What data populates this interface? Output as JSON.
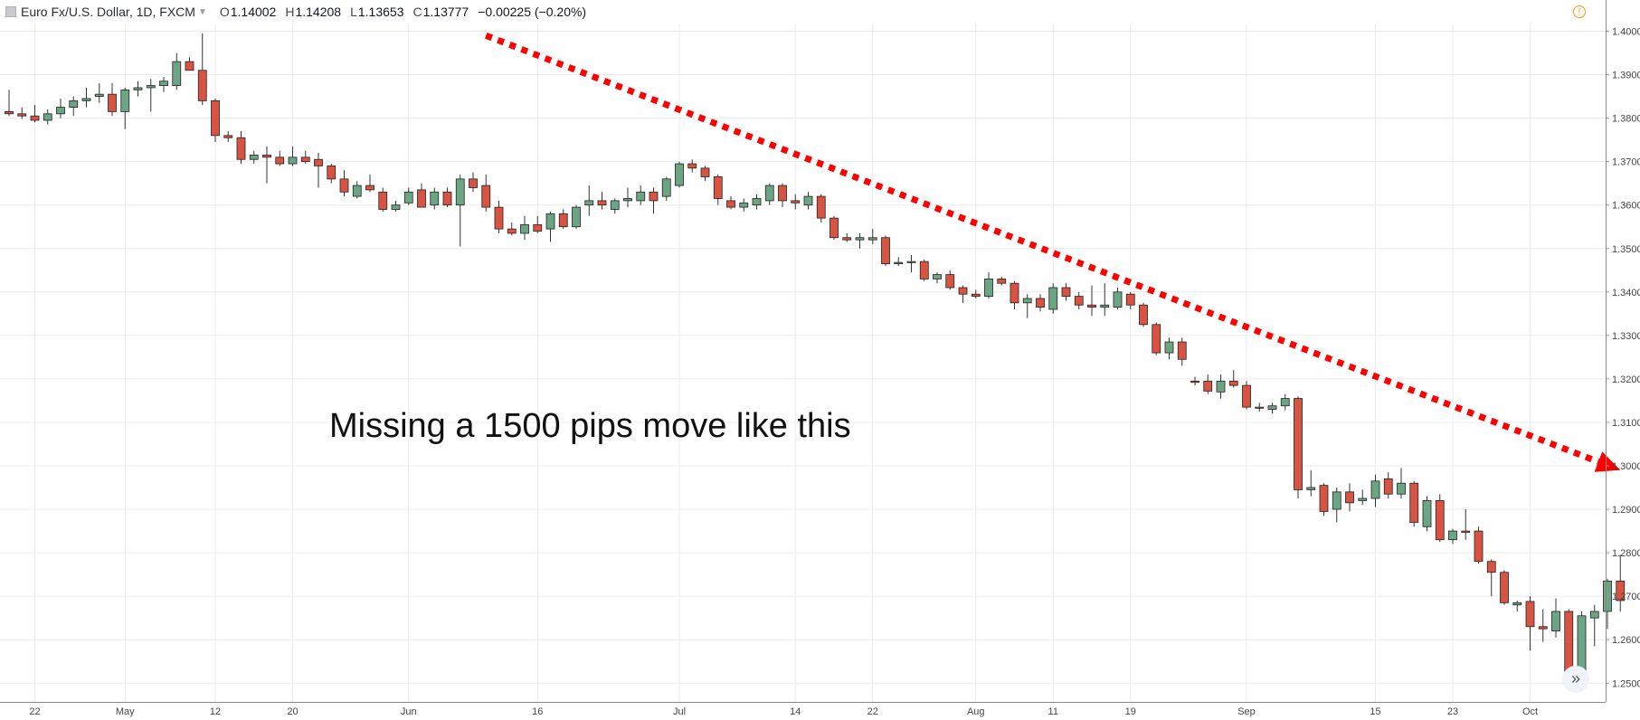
{
  "header": {
    "symbol": "Euro Fx/U.S. Dollar, 1D, FXCM",
    "open_key": "O",
    "open": "1.14002",
    "high_key": "H",
    "high": "1.14208",
    "low_key": "L",
    "low": "1.13653",
    "close_key": "C",
    "close": "1.13777",
    "change": "−0.00225 (−0.20%)"
  },
  "annotation": "Missing a 1500 pips move like this",
  "scroll_button": "»",
  "info_icon": "!",
  "colors": {
    "up": "#6ba583",
    "down": "#d75442",
    "arrow": "#ff0000",
    "wick": "#333333",
    "grid": "#ececec"
  },
  "chart_data": {
    "type": "candlestick",
    "ylim": [
      1.245,
      1.405
    ],
    "yticks": [
      "1.25000",
      "1.26000",
      "1.27000",
      "1.28000",
      "1.29000",
      "1.30000",
      "1.31000",
      "1.32000",
      "1.33000",
      "1.34000",
      "1.35000",
      "1.36000",
      "1.37000",
      "1.38000",
      "1.39000",
      "1.40000"
    ],
    "xticks": [
      {
        "label": "22",
        "i": 2
      },
      {
        "label": "May",
        "i": 9
      },
      {
        "label": "12",
        "i": 16
      },
      {
        "label": "20",
        "i": 22
      },
      {
        "label": "Jun",
        "i": 31
      },
      {
        "label": "16",
        "i": 41
      },
      {
        "label": "Jul",
        "i": 52
      },
      {
        "label": "14",
        "i": 61
      },
      {
        "label": "22",
        "i": 67
      },
      {
        "label": "Aug",
        "i": 75
      },
      {
        "label": "11",
        "i": 81
      },
      {
        "label": "19",
        "i": 87
      },
      {
        "label": "Sep",
        "i": 96
      },
      {
        "label": "15",
        "i": 106
      },
      {
        "label": "23",
        "i": 112
      },
      {
        "label": "Oct",
        "i": 118
      }
    ],
    "candles": [
      [
        1.3815,
        1.3865,
        1.3805,
        1.381
      ],
      [
        1.381,
        1.3825,
        1.3798,
        1.3805
      ],
      [
        1.3805,
        1.383,
        1.379,
        1.3795
      ],
      [
        1.3795,
        1.382,
        1.3785,
        1.381
      ],
      [
        1.381,
        1.3845,
        1.38,
        1.3825
      ],
      [
        1.3825,
        1.385,
        1.3805,
        1.384
      ],
      [
        1.384,
        1.387,
        1.3825,
        1.3845
      ],
      [
        1.385,
        1.388,
        1.3835,
        1.3855
      ],
      [
        1.3855,
        1.388,
        1.3805,
        1.3815
      ],
      [
        1.3815,
        1.387,
        1.3775,
        1.3865
      ],
      [
        1.3865,
        1.3885,
        1.385,
        1.387
      ],
      [
        1.387,
        1.389,
        1.3815,
        1.3875
      ],
      [
        1.3875,
        1.3895,
        1.386,
        1.3885
      ],
      [
        1.3875,
        1.395,
        1.3865,
        1.393
      ],
      [
        1.393,
        1.394,
        1.391,
        1.391
      ],
      [
        1.391,
        1.3995,
        1.383,
        1.384
      ],
      [
        1.384,
        1.3845,
        1.3745,
        1.376
      ],
      [
        1.376,
        1.377,
        1.3745,
        1.3755
      ],
      [
        1.3755,
        1.377,
        1.3695,
        1.3705
      ],
      [
        1.3705,
        1.3725,
        1.3695,
        1.3715
      ],
      [
        1.3715,
        1.3735,
        1.365,
        1.371
      ],
      [
        1.371,
        1.3725,
        1.369,
        1.3695
      ],
      [
        1.3695,
        1.3735,
        1.369,
        1.371
      ],
      [
        1.371,
        1.3725,
        1.3695,
        1.37
      ],
      [
        1.3705,
        1.372,
        1.364,
        1.369
      ],
      [
        1.369,
        1.3695,
        1.365,
        1.366
      ],
      [
        1.366,
        1.368,
        1.362,
        1.363
      ],
      [
        1.362,
        1.3655,
        1.3615,
        1.3645
      ],
      [
        1.3645,
        1.367,
        1.363,
        1.3635
      ],
      [
        1.363,
        1.364,
        1.3585,
        1.359
      ],
      [
        1.359,
        1.361,
        1.3585,
        1.36
      ],
      [
        1.3605,
        1.364,
        1.36,
        1.363
      ],
      [
        1.3635,
        1.365,
        1.3595,
        1.3595
      ],
      [
        1.36,
        1.364,
        1.359,
        1.363
      ],
      [
        1.363,
        1.364,
        1.3595,
        1.36
      ],
      [
        1.36,
        1.367,
        1.3505,
        1.366
      ],
      [
        1.366,
        1.3675,
        1.363,
        1.364
      ],
      [
        1.3645,
        1.367,
        1.3585,
        1.3595
      ],
      [
        1.3595,
        1.361,
        1.3535,
        1.3545
      ],
      [
        1.3545,
        1.356,
        1.353,
        1.3535
      ],
      [
        1.3535,
        1.3575,
        1.352,
        1.3555
      ],
      [
        1.3555,
        1.3575,
        1.3535,
        1.354
      ],
      [
        1.3545,
        1.3585,
        1.3515,
        1.358
      ],
      [
        1.358,
        1.359,
        1.3545,
        1.355
      ],
      [
        1.355,
        1.36,
        1.3545,
        1.3595
      ],
      [
        1.36,
        1.3645,
        1.3575,
        1.361
      ],
      [
        1.361,
        1.363,
        1.359,
        1.36
      ],
      [
        1.359,
        1.3615,
        1.358,
        1.361
      ],
      [
        1.361,
        1.364,
        1.3595,
        1.3615
      ],
      [
        1.361,
        1.3645,
        1.36,
        1.363
      ],
      [
        1.363,
        1.364,
        1.358,
        1.361
      ],
      [
        1.362,
        1.3665,
        1.361,
        1.366
      ],
      [
        1.3645,
        1.37,
        1.364,
        1.3695
      ],
      [
        1.3695,
        1.3705,
        1.3675,
        1.3685
      ],
      [
        1.3685,
        1.369,
        1.3655,
        1.3665
      ],
      [
        1.3665,
        1.367,
        1.36,
        1.3615
      ],
      [
        1.361,
        1.362,
        1.359,
        1.3595
      ],
      [
        1.3595,
        1.3615,
        1.3585,
        1.3605
      ],
      [
        1.36,
        1.3625,
        1.359,
        1.3615
      ],
      [
        1.361,
        1.365,
        1.36,
        1.3645
      ],
      [
        1.3645,
        1.365,
        1.3595,
        1.361
      ],
      [
        1.361,
        1.3625,
        1.359,
        1.3605
      ],
      [
        1.36,
        1.363,
        1.359,
        1.362
      ],
      [
        1.362,
        1.3625,
        1.356,
        1.357
      ],
      [
        1.357,
        1.3575,
        1.352,
        1.3525
      ],
      [
        1.3525,
        1.3535,
        1.3515,
        1.352
      ],
      [
        1.352,
        1.3535,
        1.35,
        1.3525
      ],
      [
        1.352,
        1.3545,
        1.351,
        1.3525
      ],
      [
        1.3525,
        1.353,
        1.346,
        1.3465
      ],
      [
        1.3465,
        1.348,
        1.346,
        1.3468
      ],
      [
        1.3468,
        1.3485,
        1.3445,
        1.347
      ],
      [
        1.347,
        1.3475,
        1.3425,
        1.343
      ],
      [
        1.343,
        1.3445,
        1.342,
        1.344
      ],
      [
        1.344,
        1.345,
        1.3405,
        1.341
      ],
      [
        1.341,
        1.3415,
        1.3375,
        1.3395
      ],
      [
        1.3395,
        1.3405,
        1.3385,
        1.339
      ],
      [
        1.339,
        1.3445,
        1.3385,
        1.343
      ],
      [
        1.343,
        1.3435,
        1.3415,
        1.342
      ],
      [
        1.342,
        1.3425,
        1.336,
        1.3375
      ],
      [
        1.3375,
        1.3395,
        1.334,
        1.3385
      ],
      [
        1.3385,
        1.3395,
        1.3355,
        1.3365
      ],
      [
        1.336,
        1.342,
        1.335,
        1.341
      ],
      [
        1.341,
        1.342,
        1.338,
        1.339
      ],
      [
        1.339,
        1.34,
        1.336,
        1.337
      ],
      [
        1.337,
        1.3415,
        1.3345,
        1.3365
      ],
      [
        1.3365,
        1.342,
        1.3345,
        1.337
      ],
      [
        1.3365,
        1.341,
        1.336,
        1.34
      ],
      [
        1.3395,
        1.34,
        1.336,
        1.337
      ],
      [
        1.337,
        1.3375,
        1.332,
        1.3325
      ],
      [
        1.3325,
        1.333,
        1.3255,
        1.326
      ],
      [
        1.326,
        1.3295,
        1.3245,
        1.3285
      ],
      [
        1.3285,
        1.3295,
        1.323,
        1.3245
      ],
      [
        1.3195,
        1.3205,
        1.3185,
        1.3192
      ],
      [
        1.3195,
        1.321,
        1.3165,
        1.3172
      ],
      [
        1.317,
        1.321,
        1.3155,
        1.3195
      ],
      [
        1.3195,
        1.322,
        1.318,
        1.3185
      ],
      [
        1.3185,
        1.3195,
        1.313,
        1.3135
      ],
      [
        1.3135,
        1.3145,
        1.3125,
        1.3133
      ],
      [
        1.313,
        1.3145,
        1.312,
        1.3138
      ],
      [
        1.3138,
        1.3165,
        1.3128,
        1.3155
      ],
      [
        1.3155,
        1.316,
        1.2925,
        1.2945
      ],
      [
        1.2945,
        1.299,
        1.293,
        1.295
      ],
      [
        1.2955,
        1.296,
        1.2885,
        1.2895
      ],
      [
        1.29,
        1.295,
        1.287,
        1.294
      ],
      [
        1.294,
        1.296,
        1.2895,
        1.2915
      ],
      [
        1.292,
        1.2945,
        1.291,
        1.2925
      ],
      [
        1.2925,
        1.298,
        1.2905,
        1.2965
      ],
      [
        1.297,
        1.2985,
        1.2925,
        1.2935
      ],
      [
        1.2935,
        1.2995,
        1.2925,
        1.296
      ],
      [
        1.296,
        1.2965,
        1.286,
        1.287
      ],
      [
        1.286,
        1.293,
        1.285,
        1.292
      ],
      [
        1.292,
        1.2935,
        1.2825,
        1.283
      ],
      [
        1.283,
        1.2855,
        1.282,
        1.285
      ],
      [
        1.285,
        1.29,
        1.283,
        1.2847
      ],
      [
        1.285,
        1.286,
        1.2775,
        1.278
      ],
      [
        1.278,
        1.2785,
        1.27,
        1.2755
      ],
      [
        1.2755,
        1.276,
        1.268,
        1.2685
      ],
      [
        1.268,
        1.269,
        1.2665,
        1.2685
      ],
      [
        1.2688,
        1.27,
        1.2575,
        1.263
      ],
      [
        1.263,
        1.267,
        1.2595,
        1.2625
      ],
      [
        1.262,
        1.2695,
        1.2605,
        1.2665
      ],
      [
        1.2665,
        1.267,
        1.2505,
        1.2515
      ],
      [
        1.2515,
        1.2665,
        1.251,
        1.2655
      ],
      [
        1.265,
        1.268,
        1.2585,
        1.2665
      ],
      [
        1.2665,
        1.274,
        1.2625,
        1.2735
      ],
      [
        1.2735,
        1.2795,
        1.2665,
        1.269
      ]
    ],
    "annotation_arrow": {
      "from_index": 37,
      "from_price": 1.399,
      "to_index": 125,
      "to_price": 1.299,
      "style": "dotted",
      "color": "#ff0000"
    }
  }
}
